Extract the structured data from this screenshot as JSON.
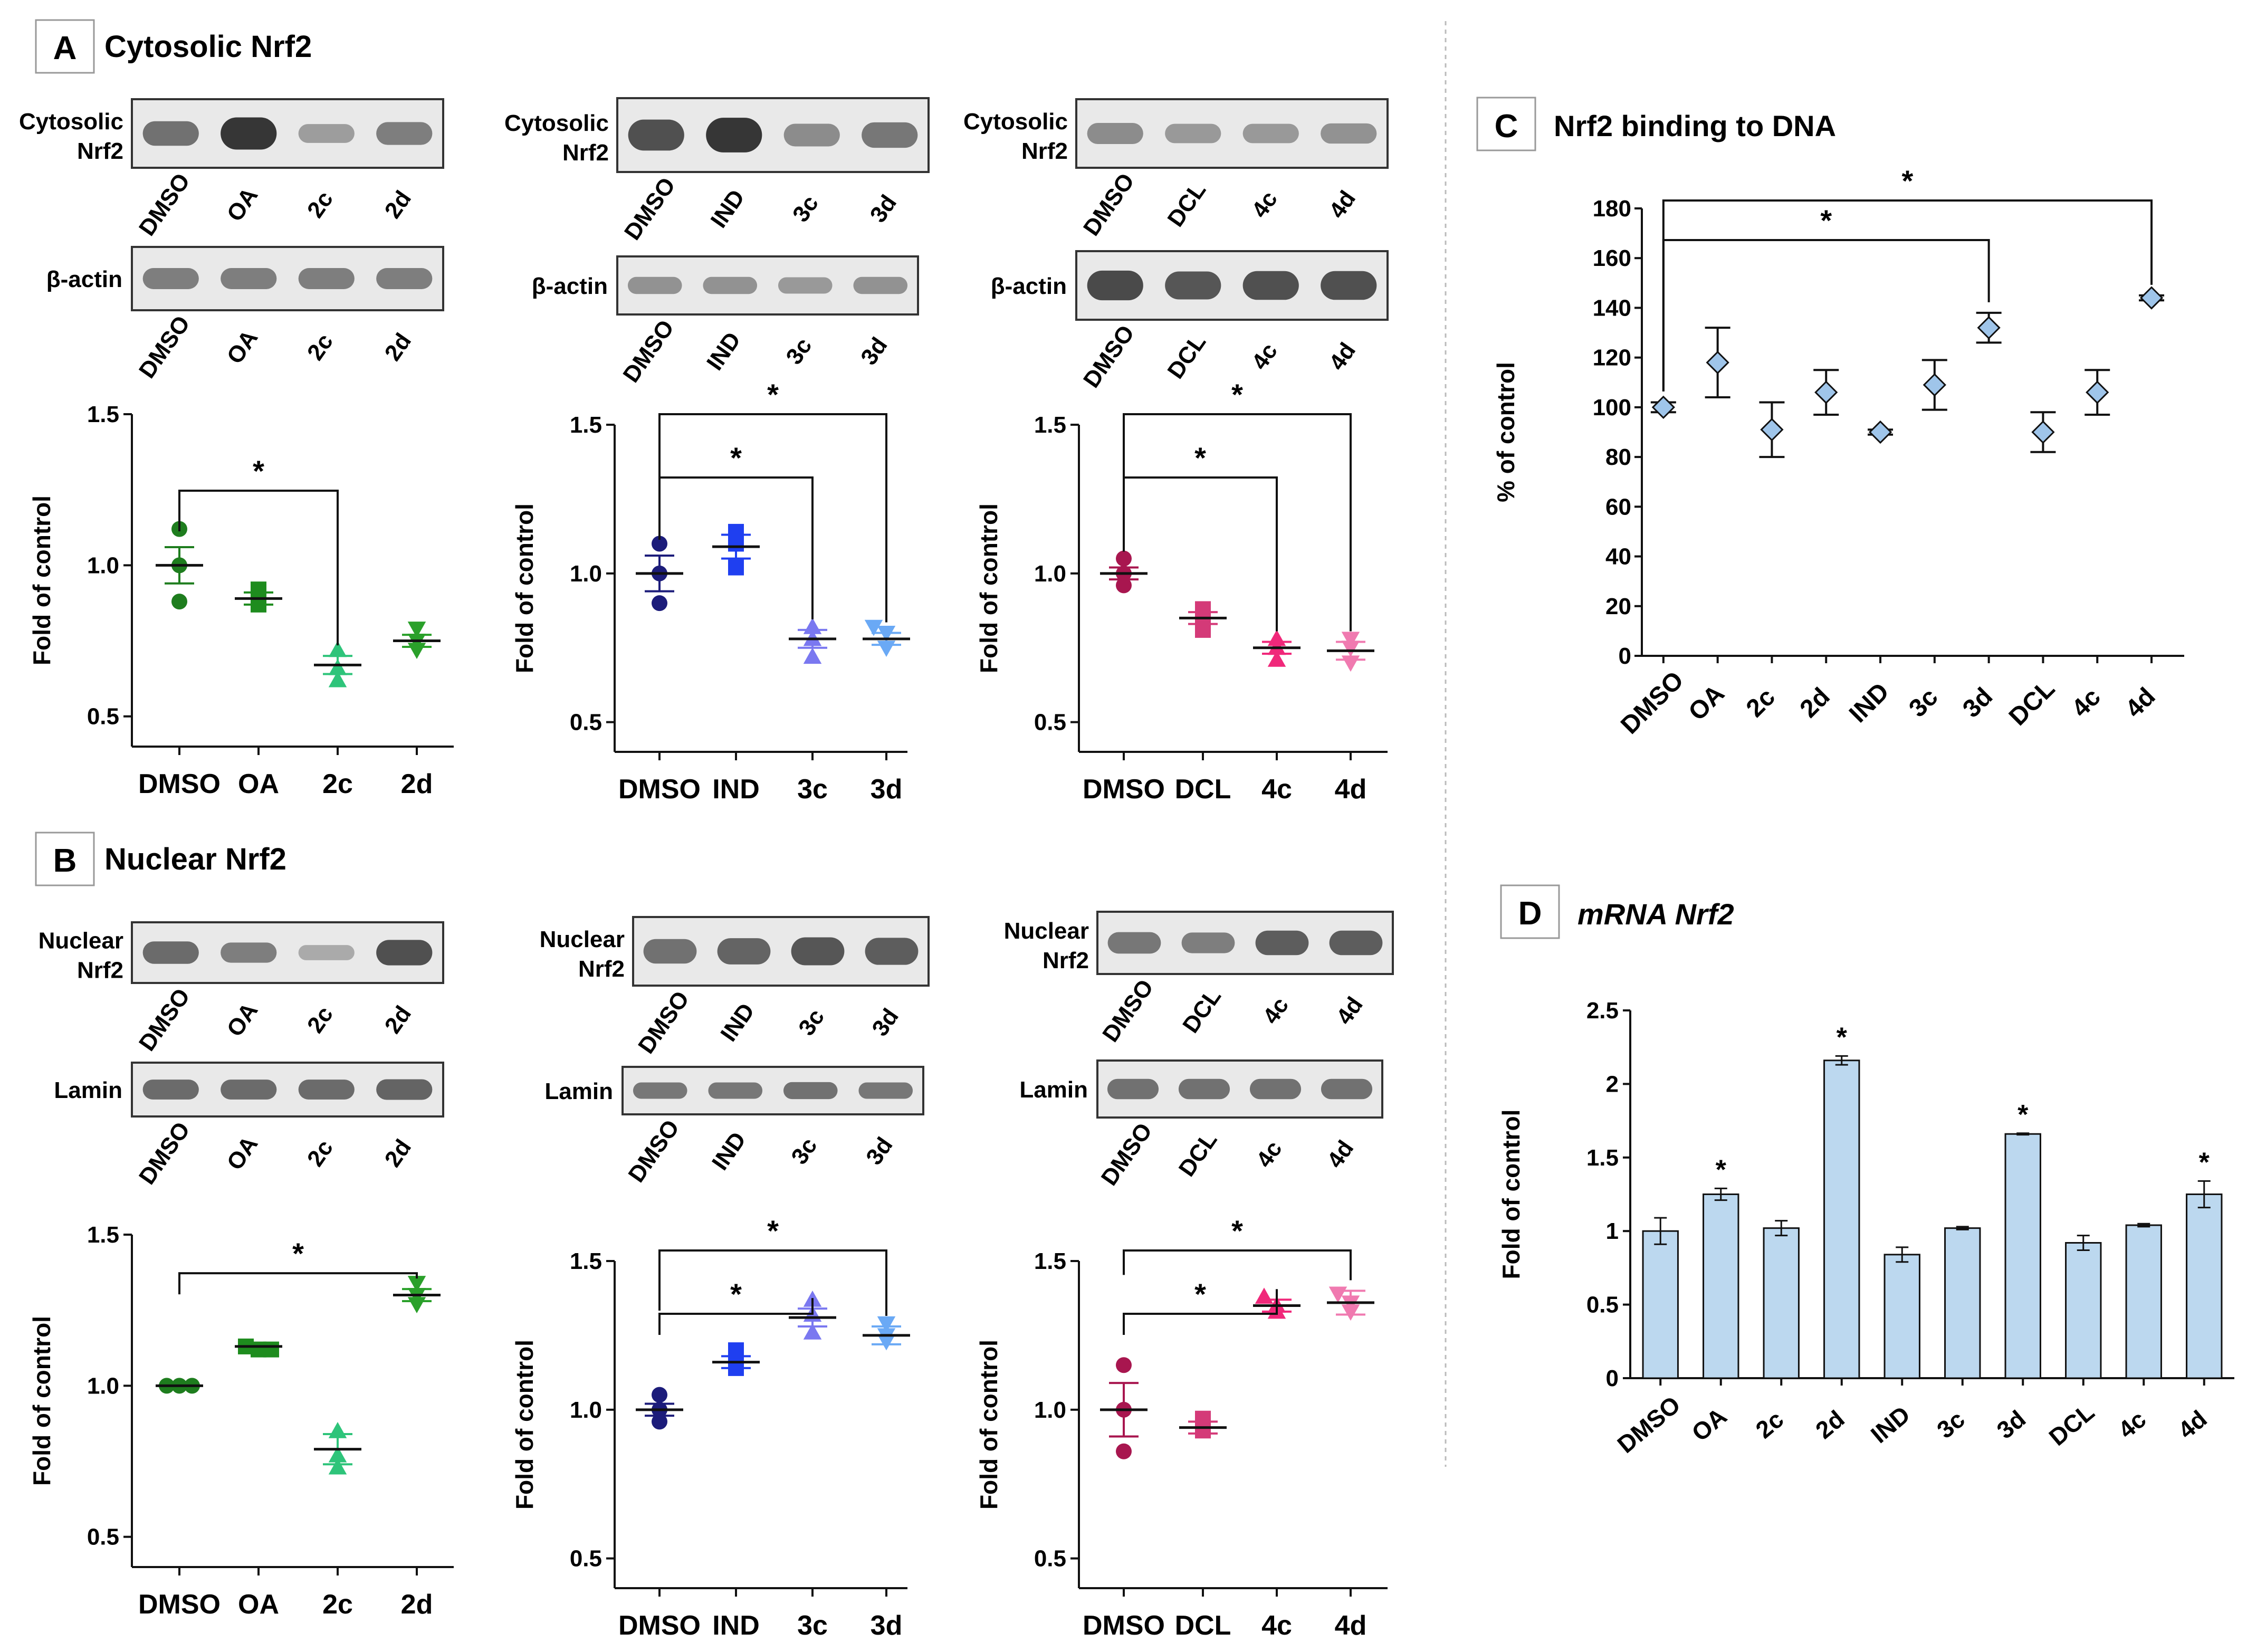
{
  "colors": {
    "axis": "#111111",
    "bar_fill": "#bcd8ef",
    "diamond": "#9fc5ea",
    "blot_bg": "#e8e8e8",
    "blot_band": "#3a3a3a",
    "sep": "#bbbbbb"
  },
  "panels": {
    "A": {
      "letter": "A",
      "title": "Cytosolic Nrf2"
    },
    "B": {
      "letter": "B",
      "title": "Nuclear Nrf2"
    },
    "C": {
      "letter": "C",
      "title": "Nrf2 binding to DNA"
    },
    "D": {
      "letter": "D",
      "title": "mRNA Nrf2"
    }
  },
  "blots": [
    {
      "id": "A1",
      "label": [
        "Cytosolic",
        "Nrf2"
      ],
      "lanes": [
        "DMSO",
        "OA",
        "2c",
        "2d"
      ],
      "intensity": [
        0.55,
        1,
        0.22,
        0.45
      ]
    },
    {
      "id": "A1L",
      "label": [
        "β-actin"
      ],
      "lanes": [
        "DMSO",
        "OA",
        "2c",
        "2d"
      ],
      "intensity": [
        0.45,
        0.45,
        0.45,
        0.45
      ]
    },
    {
      "id": "A2",
      "label": [
        "Cytosolic",
        "Nrf2"
      ],
      "lanes": [
        "DMSO",
        "IND",
        "3c",
        "3d"
      ],
      "intensity": [
        0.8,
        1,
        0.35,
        0.5
      ]
    },
    {
      "id": "A2L",
      "label": [
        "β-actin"
      ],
      "lanes": [
        "DMSO",
        "IND",
        "3c",
        "3d"
      ],
      "intensity": [
        0.3,
        0.3,
        0.25,
        0.3
      ]
    },
    {
      "id": "A3",
      "label": [
        "Cytosolic",
        "Nrf2"
      ],
      "lanes": [
        "DMSO",
        "DCL",
        "4c",
        "4d"
      ],
      "intensity": [
        0.35,
        0.25,
        0.25,
        0.3
      ]
    },
    {
      "id": "A3L",
      "label": [
        "β-actin"
      ],
      "lanes": [
        "DMSO",
        "DCL",
        "4c",
        "4d"
      ],
      "intensity": [
        0.85,
        0.75,
        0.8,
        0.8
      ]
    },
    {
      "id": "B1",
      "label": [
        "Nuclear",
        "Nrf2"
      ],
      "lanes": [
        "DMSO",
        "OA",
        "2c",
        "2d"
      ],
      "intensity": [
        0.6,
        0.45,
        0.12,
        0.8
      ]
    },
    {
      "id": "B1L",
      "label": [
        "Lamin"
      ],
      "lanes": [
        "DMSO",
        "OA",
        "2c",
        "2d"
      ],
      "intensity": [
        0.6,
        0.6,
        0.6,
        0.65
      ]
    },
    {
      "id": "B2",
      "label": [
        "Nuclear",
        "Nrf2"
      ],
      "lanes": [
        "DMSO",
        "IND",
        "3c",
        "3d"
      ],
      "intensity": [
        0.55,
        0.65,
        0.75,
        0.7
      ]
    },
    {
      "id": "B2L",
      "label": [
        "Lamin"
      ],
      "lanes": [
        "DMSO",
        "IND",
        "3c",
        "3d"
      ],
      "intensity": [
        0.5,
        0.5,
        0.55,
        0.5
      ]
    },
    {
      "id": "B3",
      "label": [
        "Nuclear",
        "Nrf2"
      ],
      "lanes": [
        "DMSO",
        "DCL",
        "4c",
        "4d"
      ],
      "intensity": [
        0.5,
        0.45,
        0.7,
        0.7
      ]
    },
    {
      "id": "B3L",
      "label": [
        "Lamin"
      ],
      "lanes": [
        "DMSO",
        "DCL",
        "4c",
        "4d"
      ],
      "intensity": [
        0.55,
        0.55,
        0.55,
        0.55
      ]
    }
  ],
  "chart_data": [
    {
      "id": "A1",
      "type": "scatter",
      "ylabel": "Fold of control",
      "ylim": [
        0.4,
        1.5
      ],
      "yticks": [
        "0.5",
        "1.0",
        "1.5"
      ],
      "categories": [
        "DMSO",
        "OA",
        "2c",
        "2d"
      ],
      "colors": [
        "#1e7d1e",
        "#1e8c1e",
        "#2ec47a",
        "#2aa02a"
      ],
      "markers": [
        "circle",
        "square",
        "triangle",
        "triangle-down"
      ],
      "points": [
        [
          1.12,
          1.0,
          0.88
        ],
        [
          0.92,
          0.88,
          0.87
        ],
        [
          0.72,
          0.66,
          0.62
        ],
        [
          0.79,
          0.75,
          0.72
        ]
      ],
      "means": [
        1.0,
        0.89,
        0.67,
        0.75
      ],
      "sem": [
        0.06,
        0.02,
        0.03,
        0.02
      ],
      "significance": [
        {
          "from": 0,
          "to": 2,
          "label": "*"
        }
      ]
    },
    {
      "id": "A2",
      "type": "scatter",
      "ylabel": "Fold of control",
      "ylim": [
        0.4,
        1.5
      ],
      "yticks": [
        "0.5",
        "1.0",
        "1.5"
      ],
      "categories": [
        "DMSO",
        "IND",
        "3c",
        "3d"
      ],
      "colors": [
        "#1c1c7a",
        "#1f3ff0",
        "#7a78f0",
        "#6aa9f5"
      ],
      "markers": [
        "circle",
        "square",
        "triangle",
        "triangle-down"
      ],
      "points": [
        [
          1.1,
          1.0,
          0.9
        ],
        [
          1.14,
          1.1,
          1.02
        ],
        [
          0.82,
          0.78,
          0.72
        ],
        [
          0.82,
          0.8,
          0.75
        ]
      ],
      "means": [
        1.0,
        1.09,
        0.78,
        0.78
      ],
      "sem": [
        0.06,
        0.04,
        0.03,
        0.02
      ],
      "significance": [
        {
          "from": 0,
          "to": 2,
          "label": "*"
        },
        {
          "from": 0,
          "to": 3,
          "label": "*"
        }
      ]
    },
    {
      "id": "A3",
      "type": "scatter",
      "ylabel": "Fold of control",
      "ylim": [
        0.4,
        1.5
      ],
      "yticks": [
        "0.5",
        "1.0",
        "1.5"
      ],
      "categories": [
        "DMSO",
        "DCL",
        "4c",
        "4d"
      ],
      "colors": [
        "#a8164f",
        "#d43a78",
        "#f0287a",
        "#f07ab0"
      ],
      "markers": [
        "circle",
        "square",
        "triangle",
        "triangle-down"
      ],
      "points": [
        [
          1.05,
          1.0,
          0.96
        ],
        [
          0.88,
          0.85,
          0.81
        ],
        [
          0.78,
          0.75,
          0.71
        ],
        [
          0.78,
          0.75,
          0.7
        ]
      ],
      "means": [
        1.0,
        0.85,
        0.75,
        0.74
      ],
      "sem": [
        0.02,
        0.02,
        0.02,
        0.03
      ],
      "significance": [
        {
          "from": 0,
          "to": 2,
          "label": "*"
        },
        {
          "from": 0,
          "to": 3,
          "label": "*"
        }
      ]
    },
    {
      "id": "B1",
      "type": "scatter",
      "ylabel": "Fold of control",
      "ylim": [
        0.4,
        1.5
      ],
      "yticks": [
        "0.5",
        "1.0",
        "1.5"
      ],
      "categories": [
        "DMSO",
        "OA",
        "2c",
        "2d"
      ],
      "colors": [
        "#1e7d1e",
        "#1e8c1e",
        "#2ec47a",
        "#2aa02a"
      ],
      "markers": [
        "circle",
        "square",
        "triangle",
        "triangle-down"
      ],
      "points": [
        [
          1.0,
          1.0,
          1.0
        ],
        [
          1.13,
          1.12,
          1.12
        ],
        [
          0.85,
          0.77,
          0.73
        ],
        [
          1.34,
          1.3,
          1.27
        ]
      ],
      "means": [
        1.0,
        1.13,
        0.79,
        1.3
      ],
      "sem": [
        0.005,
        0.01,
        0.05,
        0.02
      ],
      "significance": [
        {
          "from": 0,
          "to": 3,
          "label": "*"
        }
      ]
    },
    {
      "id": "B2",
      "type": "scatter",
      "ylabel": "Fold of control",
      "ylim": [
        0.4,
        1.5
      ],
      "yticks": [
        "0.5",
        "1.0",
        "1.5"
      ],
      "categories": [
        "DMSO",
        "IND",
        "3c",
        "3d"
      ],
      "colors": [
        "#1c1c7a",
        "#1f3ff0",
        "#7a78f0",
        "#6aa9f5"
      ],
      "markers": [
        "circle",
        "square",
        "triangle",
        "triangle-down"
      ],
      "points": [
        [
          1.05,
          1.0,
          0.96
        ],
        [
          1.2,
          1.16,
          1.14
        ],
        [
          1.37,
          1.32,
          1.26
        ],
        [
          1.29,
          1.25,
          1.23
        ]
      ],
      "means": [
        1.0,
        1.16,
        1.31,
        1.25
      ],
      "sem": [
        0.02,
        0.02,
        0.03,
        0.03
      ],
      "significance": [
        {
          "from": 0,
          "to": 2,
          "label": "*"
        },
        {
          "from": 0,
          "to": 3,
          "label": "*"
        }
      ]
    },
    {
      "id": "B3",
      "type": "scatter",
      "ylabel": "Fold of control",
      "ylim": [
        0.4,
        1.5
      ],
      "yticks": [
        "0.5",
        "1.0",
        "1.5"
      ],
      "categories": [
        "DMSO",
        "DCL",
        "4c",
        "4d"
      ],
      "colors": [
        "#a8164f",
        "#d43a78",
        "#f0287a",
        "#f07ab0"
      ],
      "markers": [
        "circle",
        "square",
        "triangle",
        "triangle-down"
      ],
      "points": [
        [
          1.15,
          1.0,
          0.86
        ],
        [
          0.97,
          0.94,
          0.93
        ],
        [
          1.38,
          1.35,
          1.33
        ],
        [
          1.39,
          1.36,
          1.33
        ]
      ],
      "means": [
        1.0,
        0.94,
        1.35,
        1.36
      ],
      "sem": [
        0.09,
        0.02,
        0.02,
        0.04
      ],
      "significance": [
        {
          "from": 0,
          "to": 2,
          "label": "*"
        },
        {
          "from": 0,
          "to": 3,
          "label": "*"
        }
      ]
    },
    {
      "id": "C",
      "type": "scatter",
      "title": "Nrf2 binding to DNA",
      "ylabel": "% of control",
      "ylim": [
        0,
        180
      ],
      "yticks": [
        "0",
        "20",
        "40",
        "60",
        "80",
        "100",
        "120",
        "140",
        "160",
        "180"
      ],
      "categories": [
        "DMSO",
        "OA",
        "2c",
        "2d",
        "IND",
        "3c",
        "3d",
        "DCL",
        "4c",
        "4d"
      ],
      "means": [
        100,
        118,
        91,
        106,
        90,
        109,
        132,
        90,
        106,
        144
      ],
      "sem": [
        2,
        14,
        11,
        9,
        1,
        10,
        6,
        8,
        9,
        1
      ],
      "significance": [
        {
          "from": 0,
          "to": 6,
          "label": "*"
        },
        {
          "from": 0,
          "to": 9,
          "label": "*"
        }
      ]
    },
    {
      "id": "D",
      "type": "bar",
      "title": "mRNA Nrf2",
      "ylabel": "Fold of control",
      "ylim": [
        0,
        2.5
      ],
      "yticks": [
        "0",
        "0.5",
        "1",
        "1.5",
        "2",
        "2.5"
      ],
      "categories": [
        "DMSO",
        "OA",
        "2c",
        "2d",
        "IND",
        "3c",
        "3d",
        "DCL",
        "4c",
        "4d"
      ],
      "values": [
        1.0,
        1.25,
        1.02,
        2.16,
        0.84,
        1.02,
        1.66,
        0.92,
        1.04,
        1.25
      ],
      "errors": [
        0.09,
        0.04,
        0.05,
        0.03,
        0.05,
        0.01,
        0.005,
        0.05,
        0.01,
        0.09
      ],
      "significant": [
        false,
        true,
        false,
        true,
        false,
        false,
        true,
        false,
        false,
        true
      ],
      "star_label": "*"
    }
  ]
}
